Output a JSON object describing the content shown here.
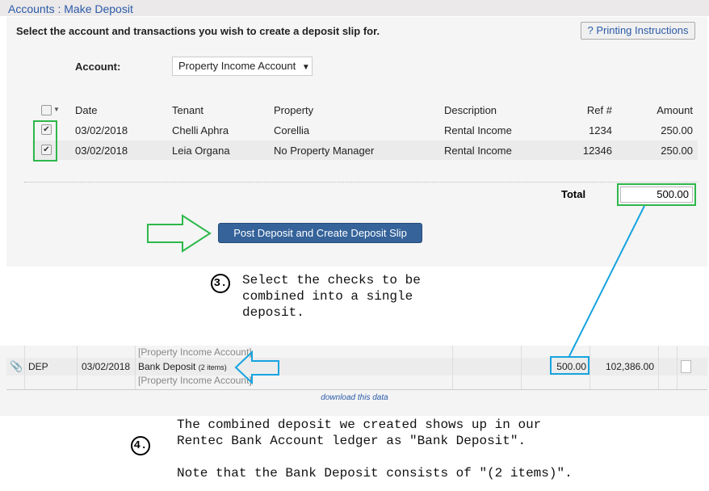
{
  "header": {
    "title": "Accounts : Make Deposit"
  },
  "form": {
    "instructions": "Select the account and transactions you wish to create a deposit slip for.",
    "print_button": "? Printing Instructions",
    "account_label": "Account:",
    "account_value": "Property Income Account",
    "select_arrow": "▼"
  },
  "table": {
    "headers": [
      "Date",
      "Tenant",
      "Property",
      "Description",
      "Ref #",
      "Amount"
    ],
    "rows": [
      {
        "checked": true,
        "date": "03/02/2018",
        "tenant": "Chelli Aphra",
        "property": "Corellia",
        "description": "Rental Income",
        "ref": "1234",
        "amount": "250.00"
      },
      {
        "checked": true,
        "date": "03/02/2018",
        "tenant": "Leia Organa",
        "property": "No Property Manager",
        "description": "Rental Income",
        "ref": "12346",
        "amount": "250.00"
      }
    ],
    "total_label": "Total",
    "total_value": "500.00"
  },
  "post_button": "Post Deposit and Create Deposit Slip",
  "callout3": {
    "number": "3.",
    "text": "Select the checks to be\ncombined into a single\ndeposit."
  },
  "ledger": {
    "account_above": "[Property Income Account]",
    "type": "DEP",
    "date": "03/02/2018",
    "description": "Bank Deposit",
    "items": "(2 items)",
    "account_below": "[Property Income Account]",
    "amount": "500.00",
    "balance": "102,386.00",
    "download": "download this data"
  },
  "callout4": {
    "number": "4.",
    "line1": "The combined deposit we created shows up in our",
    "line2": "Rentec Bank Account ledger as \"Bank Deposit\".",
    "line3": "Note that the Bank Deposit consists of \"(2 items)\"."
  },
  "colors": {
    "highlight_green": "#2db84a",
    "highlight_blue": "#16a4e0",
    "link": "#2b5aa8",
    "button": "#35639a"
  }
}
